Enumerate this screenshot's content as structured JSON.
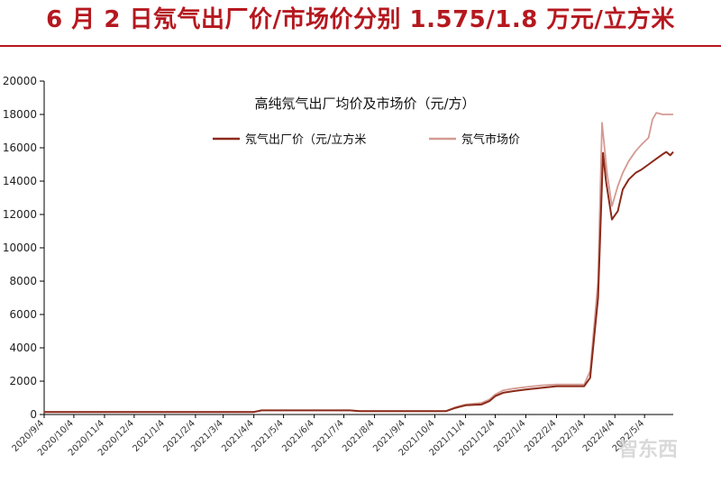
{
  "page": {
    "title": "6 月 2 日氖气出厂价/市场价分别 1.575/1.8 万元/立方米"
  },
  "watermark": {
    "text": "智东西"
  },
  "colors": {
    "title_red": "#b5181f",
    "factory_series": "#8b2a1a",
    "market_series": "#d49a92",
    "axis": "#000000"
  },
  "chart_data": {
    "type": "line",
    "title": "高纯氖气出厂均价及市场价（元/方）",
    "xlabel": "",
    "ylabel": "",
    "ylim": [
      0,
      20000
    ],
    "yticks": [
      0,
      2000,
      4000,
      6000,
      8000,
      10000,
      12000,
      14000,
      16000,
      18000,
      20000
    ],
    "xlim": [
      "2020-09-04",
      "2022-06-02"
    ],
    "x_tick_labels": [
      "2020/9/4",
      "2020/10/4",
      "2020/11/4",
      "2020/12/4",
      "2021/1/4",
      "2021/2/4",
      "2021/3/4",
      "2021/4/4",
      "2021/5/4",
      "2021/6/4",
      "2021/7/4",
      "2021/8/4",
      "2021/9/4",
      "2021/10/4",
      "2021/11/4",
      "2021/12/4",
      "2022/1/4",
      "2022/2/4",
      "2022/3/4",
      "2022/4/4",
      "2022/5/4"
    ],
    "grid": false,
    "legend_position": "top",
    "series": [
      {
        "name": "氖气出厂价（元/立方米",
        "color": "#8b2a1a",
        "points": [
          [
            "2020-09-04",
            150
          ],
          [
            "2021-04-04",
            150
          ],
          [
            "2021-04-12",
            250
          ],
          [
            "2021-07-10",
            250
          ],
          [
            "2021-07-20",
            200
          ],
          [
            "2021-10-15",
            200
          ],
          [
            "2021-10-25",
            400
          ],
          [
            "2021-11-04",
            550
          ],
          [
            "2021-11-20",
            600
          ],
          [
            "2021-11-28",
            800
          ],
          [
            "2021-12-04",
            1100
          ],
          [
            "2021-12-12",
            1300
          ],
          [
            "2021-12-22",
            1400
          ],
          [
            "2022-01-04",
            1500
          ],
          [
            "2022-01-20",
            1600
          ],
          [
            "2022-02-04",
            1700
          ],
          [
            "2022-02-20",
            1700
          ],
          [
            "2022-03-04",
            1700
          ],
          [
            "2022-03-10",
            2200
          ],
          [
            "2022-03-18",
            7000
          ],
          [
            "2022-03-23",
            15700
          ],
          [
            "2022-03-26",
            14000
          ],
          [
            "2022-04-01",
            11700
          ],
          [
            "2022-04-07",
            12200
          ],
          [
            "2022-04-12",
            13500
          ],
          [
            "2022-04-18",
            14100
          ],
          [
            "2022-04-25",
            14500
          ],
          [
            "2022-05-01",
            14700
          ],
          [
            "2022-05-08",
            15000
          ],
          [
            "2022-05-15",
            15300
          ],
          [
            "2022-05-22",
            15600
          ],
          [
            "2022-05-26",
            15750
          ],
          [
            "2022-05-30",
            15550
          ],
          [
            "2022-06-02",
            15750
          ]
        ]
      },
      {
        "name": "氖气市场价",
        "color": "#d49a92",
        "points": [
          [
            "2020-09-04",
            150
          ],
          [
            "2021-04-04",
            150
          ],
          [
            "2021-04-12",
            250
          ],
          [
            "2021-07-10",
            250
          ],
          [
            "2021-07-20",
            200
          ],
          [
            "2021-10-15",
            200
          ],
          [
            "2021-10-25",
            450
          ],
          [
            "2021-11-04",
            600
          ],
          [
            "2021-11-20",
            700
          ],
          [
            "2021-11-28",
            900
          ],
          [
            "2021-12-04",
            1200
          ],
          [
            "2021-12-12",
            1450
          ],
          [
            "2021-12-22",
            1550
          ],
          [
            "2022-01-04",
            1650
          ],
          [
            "2022-01-20",
            1750
          ],
          [
            "2022-02-04",
            1800
          ],
          [
            "2022-02-20",
            1800
          ],
          [
            "2022-03-04",
            1800
          ],
          [
            "2022-03-10",
            2600
          ],
          [
            "2022-03-18",
            8000
          ],
          [
            "2022-03-22",
            17500
          ],
          [
            "2022-03-27",
            14500
          ],
          [
            "2022-04-01",
            12500
          ],
          [
            "2022-04-07",
            13700
          ],
          [
            "2022-04-12",
            14500
          ],
          [
            "2022-04-18",
            15200
          ],
          [
            "2022-04-25",
            15800
          ],
          [
            "2022-05-01",
            16200
          ],
          [
            "2022-05-08",
            16600
          ],
          [
            "2022-05-12",
            17700
          ],
          [
            "2022-05-16",
            18100
          ],
          [
            "2022-05-22",
            18000
          ],
          [
            "2022-06-02",
            18000
          ]
        ]
      }
    ]
  }
}
